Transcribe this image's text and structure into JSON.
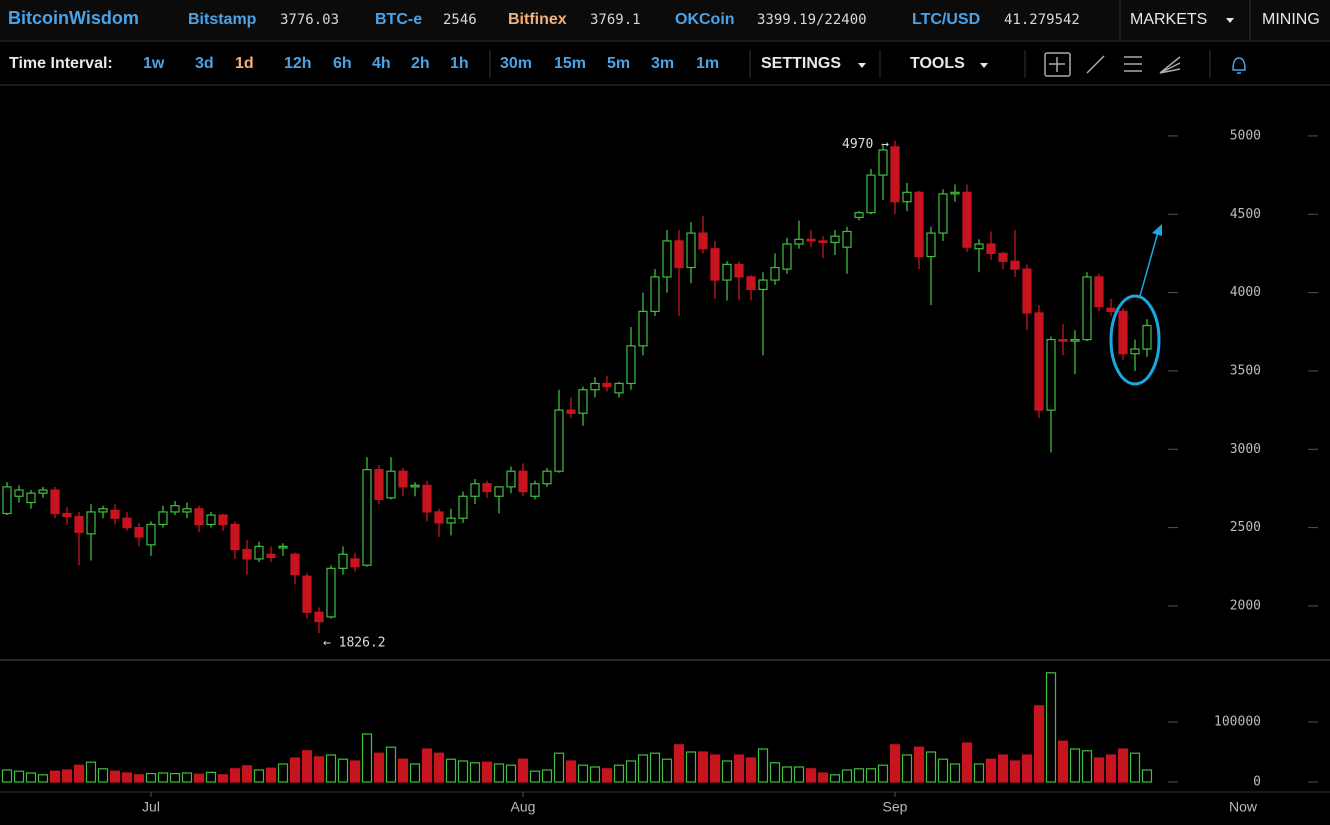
{
  "header": {
    "brand": "BitcoinWisdom",
    "markets": [
      {
        "name": "Bitstamp",
        "price": 3776.03,
        "color": "#4ba3e6"
      },
      {
        "name": "BTC-e",
        "price": 2546,
        "color": "#4ba3e6"
      },
      {
        "name": "Bitfinex",
        "price": 3769.1,
        "color": "#f4b07a"
      },
      {
        "name": "OKCoin",
        "price": "3399.19/22400",
        "color": "#4ba3e6"
      },
      {
        "name": "LTC/USD",
        "price": 41.279542,
        "color": "#4ba3e6"
      }
    ],
    "nav": [
      "MARKETS",
      "MINING"
    ]
  },
  "toolbar": {
    "label": "Time Interval:",
    "intervals": [
      "1w",
      "3d",
      "1d",
      "12h",
      "6h",
      "4h",
      "2h",
      "1h",
      "30m",
      "15m",
      "5m",
      "3m",
      "1m"
    ],
    "selected": "1d",
    "menus": [
      "SETTINGS",
      "TOOLS"
    ]
  },
  "chart_data": [
    {
      "type": "candlestick",
      "open": [
        2590,
        2700,
        2660,
        2720,
        2740,
        2590,
        2570,
        2460,
        2600,
        2610,
        2560,
        2500,
        2390,
        2520,
        2600,
        2600,
        2620,
        2520,
        2580,
        2520,
        2360,
        2300,
        2330,
        2370,
        2330,
        2190,
        1960,
        1930,
        2240,
        2300,
        2260,
        2870,
        2690,
        2860,
        2760,
        2770,
        2600,
        2530,
        2560,
        2700,
        2780,
        2700,
        2760,
        2860,
        2700,
        2780,
        2860,
        3250,
        3230,
        3380,
        3420,
        3360,
        3420,
        3660,
        3880,
        4100,
        4330,
        4160,
        4380,
        4280,
        4080,
        4180,
        4100,
        4020,
        4080,
        4150,
        4310,
        4340,
        4330,
        4320,
        4290,
        4480,
        4510,
        4750,
        4930,
        4580,
        4640,
        4230,
        4380,
        4630,
        4640,
        4280,
        4310,
        4250,
        4200,
        4150,
        3870,
        3250,
        3700,
        3690,
        3700,
        4100,
        3900,
        3880,
        3610,
        3640
      ],
      "high": [
        2790,
        2770,
        2740,
        2760,
        2760,
        2630,
        2600,
        2650,
        2640,
        2650,
        2600,
        2530,
        2540,
        2640,
        2670,
        2660,
        2640,
        2600,
        2590,
        2540,
        2420,
        2410,
        2380,
        2400,
        2340,
        2210,
        1990,
        2260,
        2380,
        2340,
        2950,
        2900,
        2950,
        2880,
        2790,
        2800,
        2620,
        2620,
        2730,
        2810,
        2800,
        2760,
        2890,
        2910,
        2800,
        2880,
        3380,
        3330,
        3400,
        3460,
        3470,
        3430,
        3780,
        4000,
        4150,
        4400,
        4400,
        4450,
        4490,
        4330,
        4200,
        4200,
        4110,
        4130,
        4250,
        4350,
        4460,
        4400,
        4360,
        4400,
        4420,
        4520,
        4790,
        4950,
        4970,
        4700,
        4650,
        4420,
        4660,
        4690,
        4690,
        4340,
        4390,
        4260,
        4400,
        4180,
        3920,
        3720,
        3800,
        3760,
        4130,
        4120,
        3960,
        3900,
        3700,
        3830
      ],
      "low": [
        2580,
        2660,
        2620,
        2690,
        2560,
        2520,
        2260,
        2290,
        2560,
        2520,
        2480,
        2380,
        2320,
        2500,
        2580,
        2560,
        2470,
        2500,
        2480,
        2300,
        2200,
        2280,
        2280,
        2320,
        2140,
        1920,
        1826.2,
        1920,
        2200,
        2220,
        2250,
        2650,
        2680,
        2700,
        2700,
        2540,
        2440,
        2450,
        2530,
        2650,
        2690,
        2590,
        2720,
        2700,
        2680,
        2760,
        2850,
        3200,
        3150,
        3330,
        3370,
        3330,
        3380,
        3600,
        3850,
        4000,
        3850,
        4060,
        4250,
        3960,
        3950,
        3950,
        3950,
        3600,
        4050,
        4120,
        4280,
        4290,
        4220,
        4240,
        4120,
        4460,
        4500,
        4590,
        4500,
        4520,
        4150,
        3920,
        4330,
        4580,
        4260,
        4130,
        4210,
        4150,
        4100,
        3760,
        3200,
        2980,
        3600,
        3480,
        3690,
        3880,
        3850,
        3570,
        3500,
        3590
      ],
      "close": [
        2760,
        2740,
        2720,
        2740,
        2590,
        2570,
        2470,
        2600,
        2620,
        2560,
        2500,
        2440,
        2520,
        2600,
        2640,
        2620,
        2520,
        2580,
        2520,
        2360,
        2300,
        2380,
        2310,
        2380,
        2200,
        1960,
        1900,
        2240,
        2330,
        2250,
        2870,
        2680,
        2860,
        2760,
        2770,
        2600,
        2530,
        2560,
        2700,
        2780,
        2730,
        2760,
        2860,
        2730,
        2780,
        2860,
        3250,
        3230,
        3380,
        3420,
        3400,
        3420,
        3660,
        3880,
        4100,
        4330,
        4160,
        4380,
        4280,
        4080,
        4180,
        4100,
        4020,
        4080,
        4160,
        4310,
        4340,
        4330,
        4320,
        4360,
        4390,
        4510,
        4750,
        4910,
        4580,
        4640,
        4230,
        4380,
        4630,
        4640,
        4290,
        4310,
        4250,
        4200,
        4150,
        3870,
        3250,
        3700,
        3690,
        3700,
        4100,
        3910,
        3880,
        3610,
        3640,
        3790
      ],
      "ylim": [
        1655,
        5325
      ],
      "yticks": [
        2000,
        2500,
        3000,
        3500,
        4000,
        4500,
        5000
      ],
      "up_color": "#3fbf3f",
      "down_color": "#c8141e",
      "annotations": [
        {
          "label": "4970 →",
          "value": 4970
        },
        {
          "label": "← 1826.2",
          "value": 1826.2
        }
      ]
    },
    {
      "type": "bar",
      "categories": [
        null,
        null,
        null,
        null,
        null,
        null,
        null,
        null,
        null,
        null,
        null,
        null,
        "Jul",
        null,
        null,
        null,
        null,
        null,
        null,
        null,
        null,
        null,
        null,
        null,
        null,
        null,
        null,
        null,
        null,
        null,
        null,
        null,
        null,
        null,
        null,
        null,
        null,
        null,
        null,
        null,
        null,
        null,
        null,
        "Aug",
        null,
        null,
        null,
        null,
        null,
        null,
        null,
        null,
        null,
        null,
        null,
        null,
        null,
        null,
        null,
        null,
        null,
        null,
        null,
        null,
        null,
        null,
        null,
        null,
        null,
        null,
        null,
        null,
        null,
        null,
        "Sep",
        null,
        null,
        null,
        null,
        null,
        null,
        null,
        null,
        null,
        null,
        null,
        null,
        null,
        null,
        null,
        null,
        null,
        null,
        null,
        null,
        null
      ],
      "values": [
        20000,
        18000,
        15000,
        12000,
        18000,
        20000,
        28000,
        33000,
        22000,
        18000,
        15000,
        12000,
        14000,
        15000,
        14000,
        15000,
        13000,
        16000,
        12000,
        22000,
        27000,
        20000,
        23000,
        30000,
        40000,
        52000,
        42000,
        45000,
        38000,
        35000,
        80000,
        48000,
        58000,
        38000,
        30000,
        55000,
        48000,
        38000,
        35000,
        32000,
        33000,
        30000,
        28000,
        38000,
        18000,
        20000,
        48000,
        35000,
        28000,
        25000,
        22000,
        28000,
        35000,
        45000,
        48000,
        38000,
        62000,
        50000,
        50000,
        45000,
        35000,
        45000,
        40000,
        55000,
        32000,
        25000,
        25000,
        22000,
        15000,
        12000,
        20000,
        22000,
        22000,
        28000,
        62000,
        45000,
        58000,
        50000,
        38000,
        30000,
        65000,
        30000,
        38000,
        45000,
        35000,
        45000,
        127000,
        182000,
        68000,
        55000,
        52000,
        40000,
        45000,
        55000,
        48000,
        20000
      ],
      "ylim": [
        0,
        200000
      ],
      "yticks": [
        0,
        100000
      ],
      "now_label": "Now"
    }
  ]
}
